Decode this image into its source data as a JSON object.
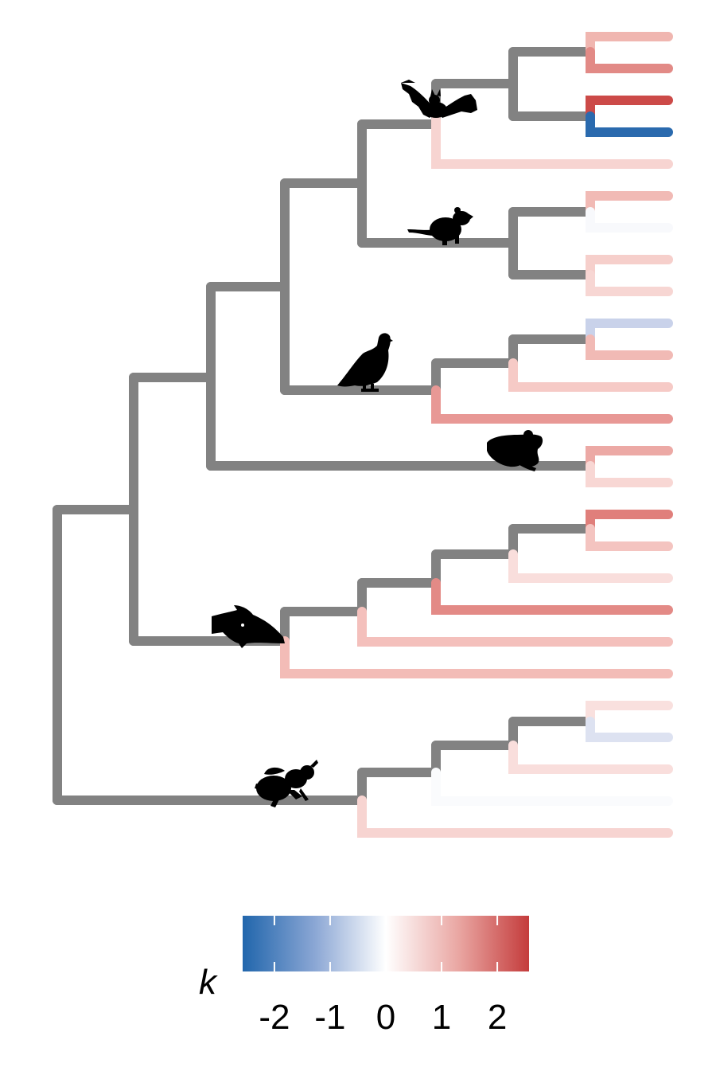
{
  "figure": {
    "type": "phylogenetic-tree",
    "branch_color_variable": "k"
  },
  "legend": {
    "title": "k",
    "ticks": [
      "-2",
      "-1",
      "0",
      "1",
      "2"
    ],
    "tick_values": [
      -2,
      -1,
      0,
      1,
      2
    ],
    "min": -2.57,
    "max": 2.57,
    "low_color": "#2166ac",
    "mid_color": "#ffffff",
    "high_color": "#c43c3c"
  },
  "tree": {
    "internal_branch_color": "#828282",
    "silhouette_icons": [
      "bat-icon",
      "rat-icon",
      "pigeon-icon",
      "frog-icon",
      "fish-icon",
      "bee-icon"
    ],
    "tips": [
      {
        "color": "#f0b6b0"
      },
      {
        "color": "#e28a86"
      },
      {
        "color": "#cc4a48"
      },
      {
        "color": "#2a6aae"
      },
      {
        "color": "#f7d4d1"
      },
      {
        "color": "#f1bab5"
      },
      {
        "color": "#f8f9fc"
      },
      {
        "color": "#f6cfcb"
      },
      {
        "color": "#f7d6d3"
      },
      {
        "color": "#c9d2ea"
      },
      {
        "color": "#f1bab5"
      },
      {
        "color": "#f6cac6"
      },
      {
        "color": "#e89895"
      },
      {
        "color": "#eca9a5"
      },
      {
        "color": "#f8d7d4"
      },
      {
        "color": "#e07f7b"
      },
      {
        "color": "#f4c4c0"
      },
      {
        "color": "#f9dedc"
      },
      {
        "color": "#e38a86"
      },
      {
        "color": "#f4c0bc"
      },
      {
        "color": "#f3bcb7"
      },
      {
        "color": "#f9e0de"
      },
      {
        "color": "#dde2f1"
      },
      {
        "color": "#f9dedc"
      },
      {
        "color": "#fafbfd"
      },
      {
        "color": "#f7d4d1"
      }
    ]
  }
}
